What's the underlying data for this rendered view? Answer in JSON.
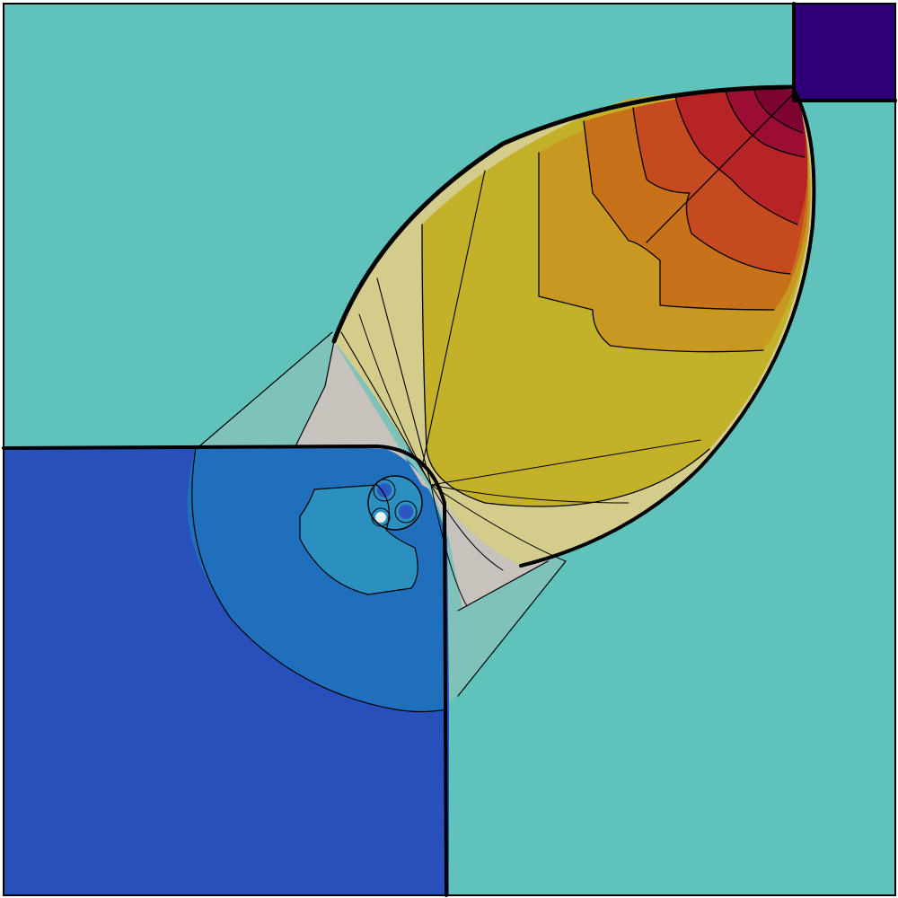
{
  "colors": {
    "background": "#5fc2bb",
    "top_right_state": "#2e0077",
    "bottom_left_state": "#2850bb",
    "swirl_outer": "#1f6fbd",
    "swirl_middle": "#2b8fbf",
    "fan_light": "#7fc2b9",
    "fan_grey": "#c7c2bc",
    "plume_pale": "#d3cc8a",
    "plume_yellow": "#c4b12a",
    "plume_orange_light": "#c99820",
    "plume_orange": "#c77118",
    "plume_red_orange": "#c54a1f",
    "plume_red": "#b62425",
    "plume_dark_red": "#9a0e33",
    "plume_darkest": "#7d0330",
    "vortex_core": "#2c56c2",
    "contour_line": "#000000"
  }
}
